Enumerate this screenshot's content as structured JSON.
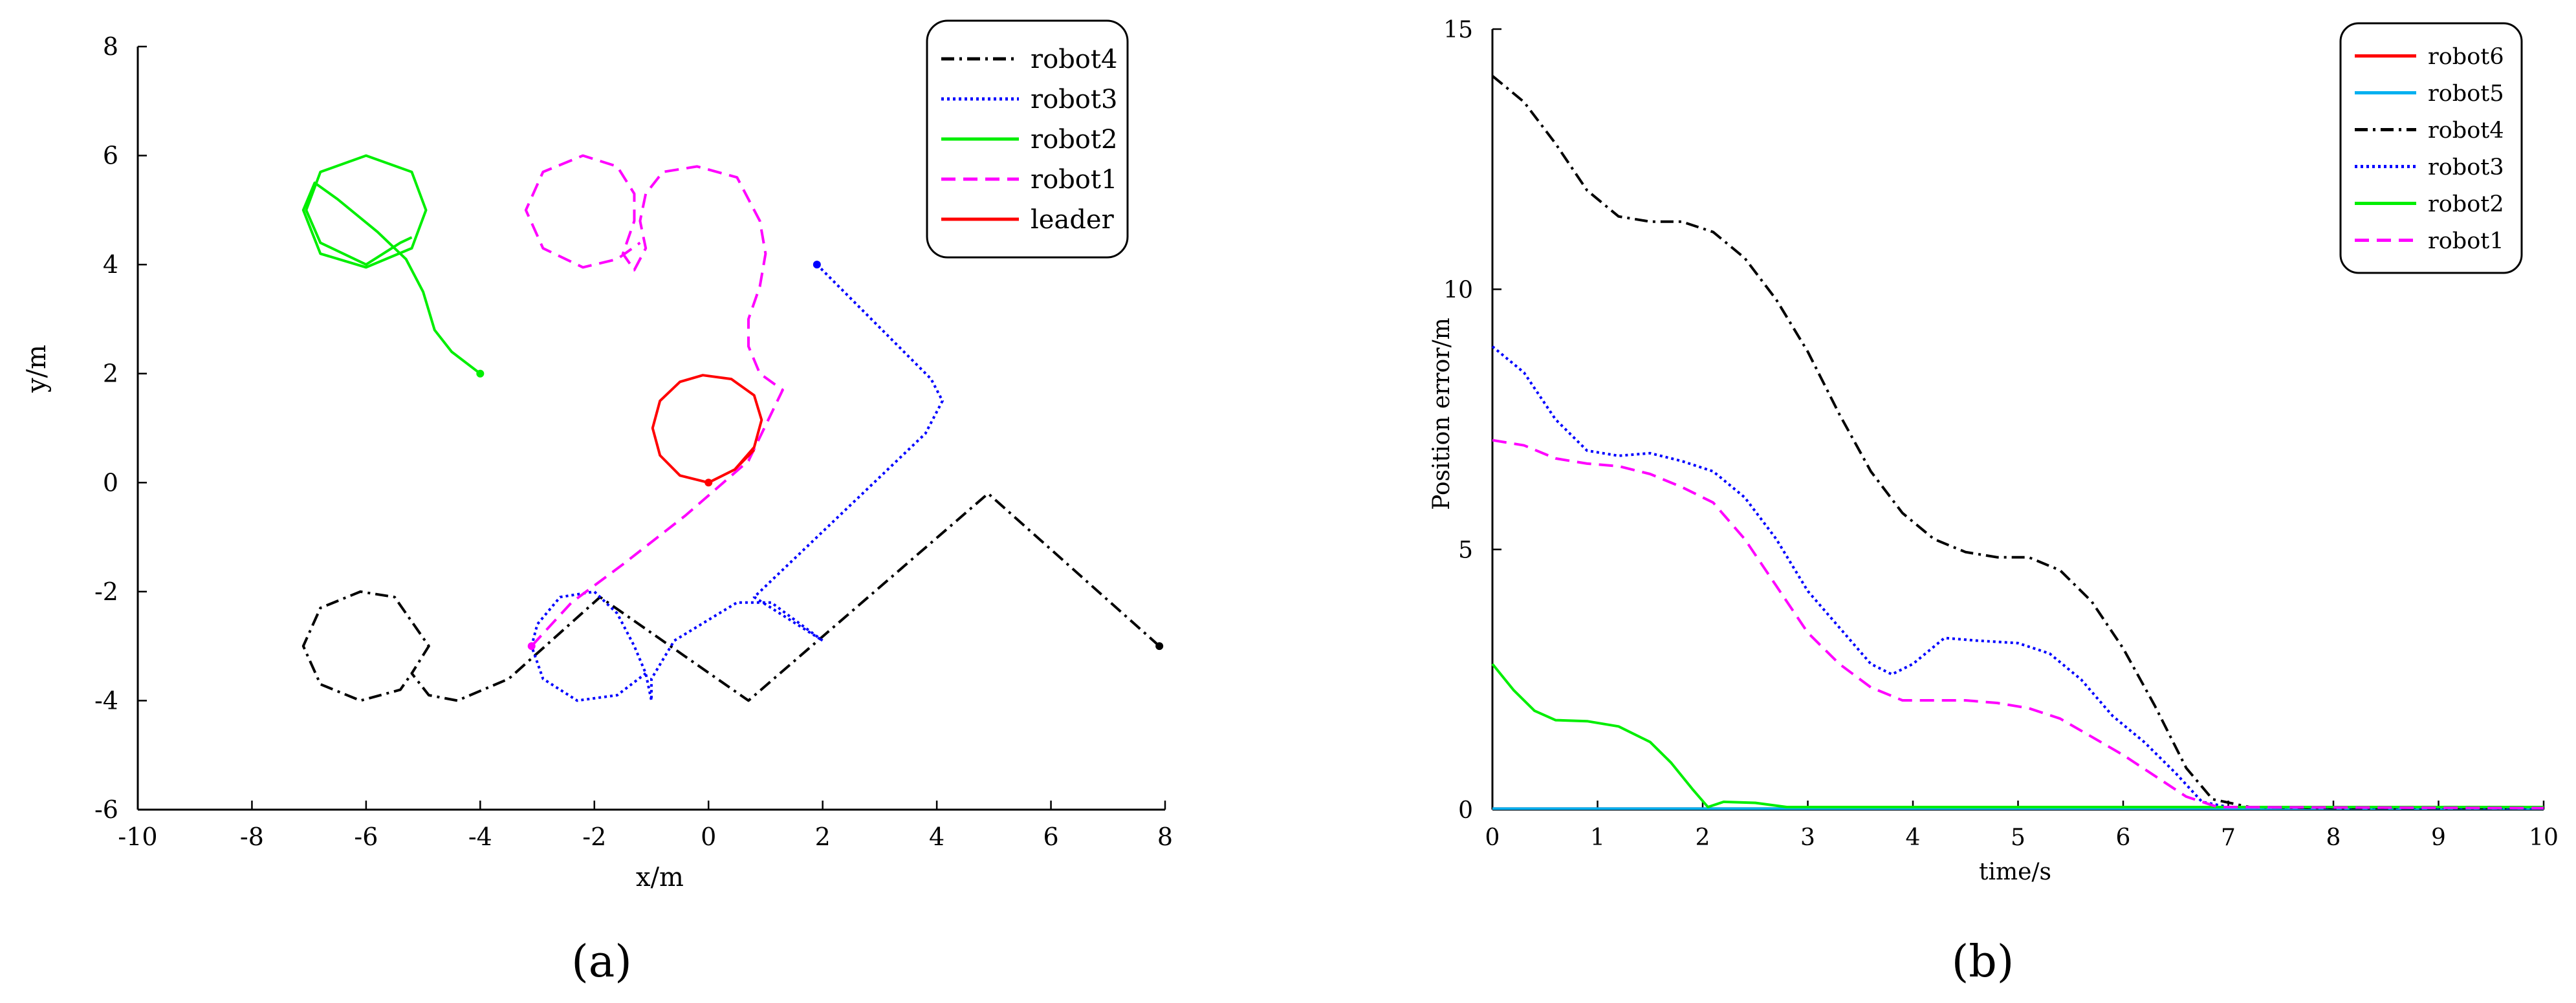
{
  "chart_data": [
    {
      "panel_label": "(a)",
      "type": "line",
      "title": "",
      "xlabel": "x/m",
      "ylabel": "y/m",
      "xlim": [
        -10,
        8
      ],
      "ylim": [
        -6,
        8
      ],
      "xticks": [
        -10,
        -8,
        -6,
        -4,
        -2,
        0,
        2,
        4,
        6,
        8
      ],
      "yticks": [
        -6,
        -4,
        -2,
        0,
        2,
        4,
        6,
        8
      ],
      "grid": false,
      "legend_position": "top-right",
      "legend": [
        "robot4",
        "robot3",
        "robot2",
        "robot1",
        "leader"
      ],
      "series": [
        {
          "name": "robot4",
          "color": "#000000",
          "style": "dashdot",
          "points": [
            [
              7.9,
              -3.0
            ],
            [
              4.9,
              -0.2
            ],
            [
              0.7,
              -4.0
            ],
            [
              -1.9,
              -2.1
            ],
            [
              -3.5,
              -3.6
            ],
            [
              -4.4,
              -4.0
            ],
            [
              -4.9,
              -3.9
            ],
            [
              -5.2,
              -3.5
            ],
            [
              -4.9,
              -3.0
            ],
            [
              -5.5,
              -2.1
            ],
            [
              -6.1,
              -2.0
            ],
            [
              -6.8,
              -2.3
            ],
            [
              -7.1,
              -3.0
            ],
            [
              -6.8,
              -3.7
            ],
            [
              -6.1,
              -4.0
            ],
            [
              -5.4,
              -3.8
            ],
            [
              -5.2,
              -3.5
            ]
          ]
        },
        {
          "name": "robot3",
          "color": "#0000ff",
          "style": "dotted",
          "points": [
            [
              1.9,
              4.0
            ],
            [
              3.9,
              1.9
            ],
            [
              4.1,
              1.5
            ],
            [
              3.8,
              0.9
            ],
            [
              3.5,
              0.6
            ],
            [
              0.8,
              -2.1
            ],
            [
              2.0,
              -2.9
            ],
            [
              1.1,
              -2.2
            ],
            [
              0.5,
              -2.2
            ],
            [
              -0.6,
              -2.9
            ],
            [
              -1.0,
              -3.6
            ],
            [
              -1.0,
              -4.0
            ],
            [
              -1.1,
              -3.5
            ],
            [
              -1.3,
              -3.0
            ],
            [
              -1.6,
              -2.4
            ],
            [
              -2.0,
              -2.0
            ],
            [
              -2.6,
              -2.1
            ],
            [
              -3.0,
              -2.6
            ],
            [
              -3.1,
              -3.0
            ],
            [
              -2.9,
              -3.6
            ],
            [
              -2.3,
              -4.0
            ],
            [
              -1.6,
              -3.9
            ],
            [
              -1.1,
              -3.5
            ]
          ]
        },
        {
          "name": "robot2",
          "color": "#00ee00",
          "style": "solid",
          "points": [
            [
              -4.0,
              2.0
            ],
            [
              -4.5,
              2.4
            ],
            [
              -4.8,
              2.8
            ],
            [
              -5.0,
              3.5
            ],
            [
              -5.3,
              4.1
            ],
            [
              -5.8,
              4.6
            ],
            [
              -6.5,
              5.2
            ],
            [
              -6.9,
              5.5
            ],
            [
              -7.1,
              5.0
            ],
            [
              -6.8,
              4.2
            ],
            [
              -6.0,
              3.95
            ],
            [
              -5.2,
              4.3
            ],
            [
              -4.95,
              5.0
            ],
            [
              -5.2,
              5.7
            ],
            [
              -6.0,
              6.0
            ],
            [
              -6.8,
              5.7
            ],
            [
              -7.05,
              5.0
            ],
            [
              -6.8,
              4.4
            ],
            [
              -6.0,
              4.0
            ],
            [
              -5.4,
              4.4
            ],
            [
              -5.2,
              4.5
            ]
          ]
        },
        {
          "name": "robot1",
          "color": "#ff00ff",
          "style": "dashed",
          "points": [
            [
              -3.1,
              -3.0
            ],
            [
              -2.4,
              -2.2
            ],
            [
              -1.5,
              -1.5
            ],
            [
              -0.4,
              -0.6
            ],
            [
              0.7,
              0.4
            ],
            [
              1.3,
              1.7
            ],
            [
              0.9,
              2.0
            ],
            [
              0.7,
              2.5
            ],
            [
              0.7,
              3.0
            ],
            [
              0.9,
              3.6
            ],
            [
              1.0,
              4.2
            ],
            [
              0.9,
              4.8
            ],
            [
              0.5,
              5.6
            ],
            [
              -0.2,
              5.8
            ],
            [
              -0.8,
              5.7
            ],
            [
              -1.1,
              5.3
            ],
            [
              -1.2,
              4.8
            ],
            [
              -1.1,
              4.3
            ],
            [
              -1.3,
              3.9
            ],
            [
              -1.5,
              4.2
            ],
            [
              -1.3,
              4.8
            ],
            [
              -1.3,
              5.3
            ],
            [
              -1.6,
              5.8
            ],
            [
              -2.2,
              6.0
            ],
            [
              -2.9,
              5.7
            ],
            [
              -3.2,
              5.0
            ],
            [
              -2.9,
              4.3
            ],
            [
              -2.2,
              3.95
            ],
            [
              -1.6,
              4.1
            ],
            [
              -1.2,
              4.4
            ]
          ]
        },
        {
          "name": "leader",
          "color": "#ff0000",
          "style": "solid",
          "points": [
            [
              0.0,
              0.0
            ],
            [
              0.46,
              0.24
            ],
            [
              0.8,
              0.65
            ],
            [
              0.93,
              1.15
            ],
            [
              0.8,
              1.6
            ],
            [
              0.4,
              1.9
            ],
            [
              -0.1,
              1.97
            ],
            [
              -0.5,
              1.85
            ],
            [
              -0.85,
              1.5
            ],
            [
              -0.98,
              1.0
            ],
            [
              -0.85,
              0.5
            ],
            [
              -0.5,
              0.13
            ],
            [
              0.0,
              0.0
            ],
            [
              0.46,
              0.24
            ],
            [
              0.8,
              0.6
            ]
          ]
        }
      ],
      "annotations": []
    },
    {
      "panel_label": "(b)",
      "type": "line",
      "title": "",
      "xlabel": "time/s",
      "ylabel": "Position error/m",
      "xlim": [
        0,
        10
      ],
      "ylim": [
        0,
        15
      ],
      "xticks": [
        0,
        1,
        2,
        3,
        4,
        5,
        6,
        7,
        8,
        9,
        10
      ],
      "yticks": [
        0,
        5,
        10,
        15
      ],
      "grid": false,
      "legend_position": "top-right",
      "legend": [
        "robot6",
        "robot5",
        "robot4",
        "robot3",
        "robot2",
        "robot1"
      ],
      "series": [
        {
          "name": "robot6",
          "color": "#ff0000",
          "style": "solid",
          "points": [
            [
              0,
              0.02
            ],
            [
              10,
              0.02
            ]
          ]
        },
        {
          "name": "robot5",
          "color": "#00b0f0",
          "style": "solid",
          "points": [
            [
              0,
              0.02
            ],
            [
              10,
              0.02
            ]
          ]
        },
        {
          "name": "robot4",
          "color": "#000000",
          "style": "dashdot",
          "points": [
            [
              0,
              14.1
            ],
            [
              0.3,
              13.6
            ],
            [
              0.6,
              12.8
            ],
            [
              0.9,
              11.9
            ],
            [
              1.2,
              11.4
            ],
            [
              1.5,
              11.3
            ],
            [
              1.8,
              11.3
            ],
            [
              2.1,
              11.1
            ],
            [
              2.4,
              10.6
            ],
            [
              2.7,
              9.8
            ],
            [
              3.0,
              8.8
            ],
            [
              3.3,
              7.6
            ],
            [
              3.6,
              6.5
            ],
            [
              3.9,
              5.7
            ],
            [
              4.2,
              5.2
            ],
            [
              4.5,
              4.95
            ],
            [
              4.8,
              4.85
            ],
            [
              5.1,
              4.85
            ],
            [
              5.4,
              4.6
            ],
            [
              5.7,
              4.0
            ],
            [
              6.0,
              3.1
            ],
            [
              6.3,
              2.0
            ],
            [
              6.6,
              0.8
            ],
            [
              6.85,
              0.2
            ],
            [
              7.2,
              0.05
            ],
            [
              8,
              0.03
            ],
            [
              10,
              0.03
            ]
          ]
        },
        {
          "name": "robot3",
          "color": "#0000ff",
          "style": "dotted",
          "points": [
            [
              0,
              8.9
            ],
            [
              0.3,
              8.4
            ],
            [
              0.6,
              7.5
            ],
            [
              0.9,
              6.9
            ],
            [
              1.2,
              6.8
            ],
            [
              1.5,
              6.85
            ],
            [
              1.8,
              6.7
            ],
            [
              2.1,
              6.5
            ],
            [
              2.4,
              6.0
            ],
            [
              2.7,
              5.2
            ],
            [
              3.0,
              4.2
            ],
            [
              3.3,
              3.5
            ],
            [
              3.6,
              2.8
            ],
            [
              3.8,
              2.6
            ],
            [
              4.0,
              2.8
            ],
            [
              4.3,
              3.3
            ],
            [
              4.6,
              3.25
            ],
            [
              5.0,
              3.2
            ],
            [
              5.3,
              3.0
            ],
            [
              5.6,
              2.5
            ],
            [
              5.9,
              1.8
            ],
            [
              6.2,
              1.3
            ],
            [
              6.5,
              0.7
            ],
            [
              6.75,
              0.15
            ],
            [
              7.0,
              0.05
            ],
            [
              10,
              0.03
            ]
          ]
        },
        {
          "name": "robot2",
          "color": "#00ee00",
          "style": "solid",
          "points": [
            [
              0,
              2.8
            ],
            [
              0.2,
              2.3
            ],
            [
              0.4,
              1.9
            ],
            [
              0.6,
              1.72
            ],
            [
              0.9,
              1.7
            ],
            [
              1.2,
              1.6
            ],
            [
              1.5,
              1.3
            ],
            [
              1.7,
              0.9
            ],
            [
              1.9,
              0.4
            ],
            [
              2.05,
              0.05
            ],
            [
              2.2,
              0.15
            ],
            [
              2.5,
              0.13
            ],
            [
              2.8,
              0.05
            ],
            [
              3.5,
              0.05
            ],
            [
              10,
              0.05
            ]
          ]
        },
        {
          "name": "robot1",
          "color": "#ff00ff",
          "style": "dashed",
          "points": [
            [
              0,
              7.1
            ],
            [
              0.3,
              7.0
            ],
            [
              0.6,
              6.75
            ],
            [
              0.9,
              6.65
            ],
            [
              1.2,
              6.6
            ],
            [
              1.5,
              6.45
            ],
            [
              1.8,
              6.2
            ],
            [
              2.1,
              5.9
            ],
            [
              2.4,
              5.2
            ],
            [
              2.7,
              4.3
            ],
            [
              3.0,
              3.4
            ],
            [
              3.3,
              2.8
            ],
            [
              3.6,
              2.35
            ],
            [
              3.9,
              2.1
            ],
            [
              4.2,
              2.1
            ],
            [
              4.5,
              2.1
            ],
            [
              4.8,
              2.05
            ],
            [
              5.1,
              1.95
            ],
            [
              5.4,
              1.75
            ],
            [
              5.7,
              1.4
            ],
            [
              6.0,
              1.05
            ],
            [
              6.3,
              0.65
            ],
            [
              6.6,
              0.25
            ],
            [
              6.9,
              0.05
            ],
            [
              10,
              0.03
            ]
          ]
        }
      ],
      "annotations": []
    }
  ]
}
